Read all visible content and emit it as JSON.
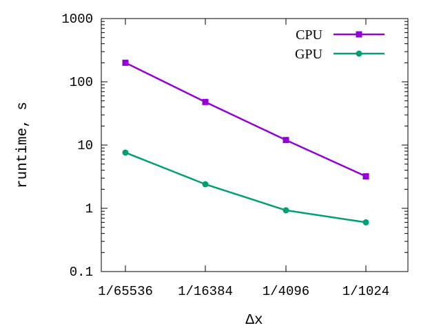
{
  "chart_data": {
    "type": "line",
    "title": "",
    "xlabel": "Δx",
    "ylabel": "runtime, s",
    "yscale": "log",
    "ylim": [
      0.1,
      1000
    ],
    "categories": [
      "1/65536",
      "1/16384",
      "1/4096",
      "1/1024"
    ],
    "yticks": [
      {
        "value": 0.1,
        "label": "0.1"
      },
      {
        "value": 1,
        "label": "1"
      },
      {
        "value": 10,
        "label": "10"
      },
      {
        "value": 100,
        "label": "100"
      },
      {
        "value": 1000,
        "label": "1000"
      }
    ],
    "legend_position": "top-right",
    "grid": false,
    "series": [
      {
        "name": "CPU",
        "color": "#9400d3",
        "marker": "square",
        "values": [
          200,
          48,
          12,
          3.2
        ]
      },
      {
        "name": "GPU",
        "color": "#009e73",
        "marker": "circle",
        "values": [
          7.6,
          2.4,
          0.93,
          0.6
        ]
      }
    ]
  }
}
